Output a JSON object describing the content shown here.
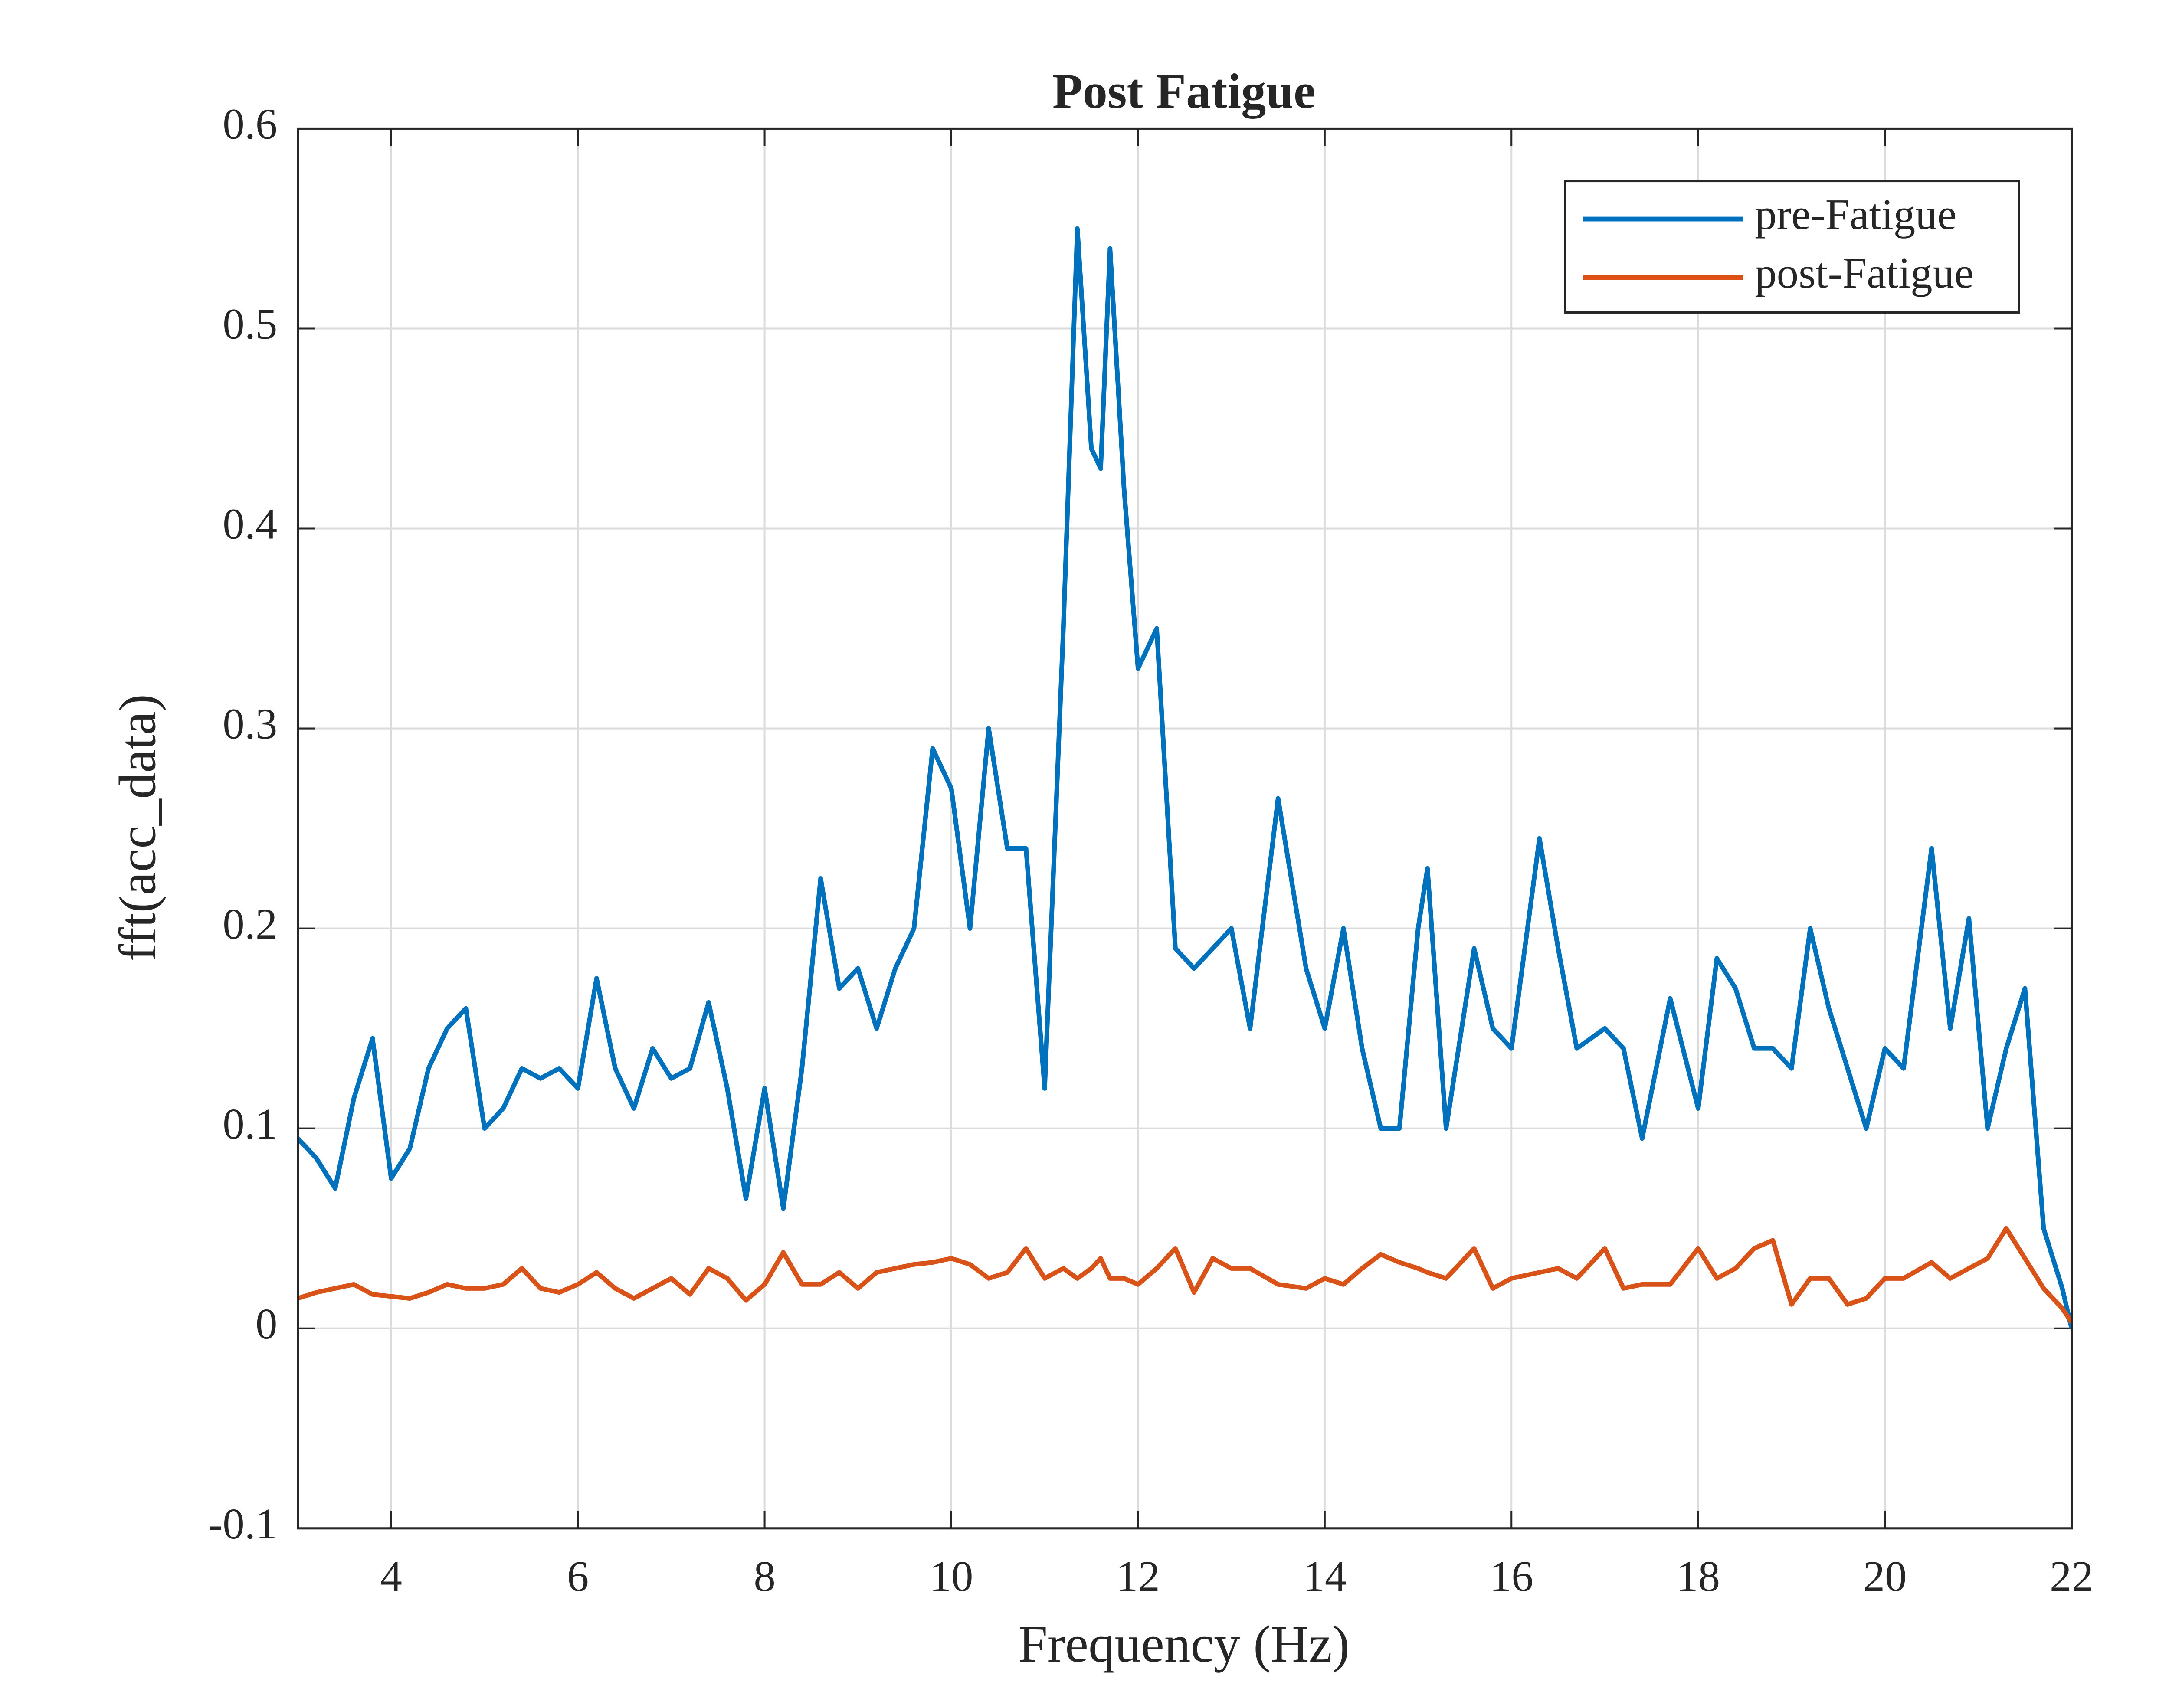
{
  "chart_data": {
    "type": "line",
    "title": "Post Fatigue",
    "xlabel": "Frequency (Hz)",
    "ylabel": "fft(acc_data)",
    "x": [
      3,
      3.2,
      3.4,
      3.6,
      3.8,
      4,
      4.2,
      4.4,
      4.6,
      4.8,
      5,
      5.2,
      5.4,
      5.6,
      5.8,
      6,
      6.2,
      6.4,
      6.6,
      6.8,
      7,
      7.2,
      7.4,
      7.6,
      7.8,
      8,
      8.2,
      8.4,
      8.6,
      8.8,
      9,
      9.2,
      9.4,
      9.6,
      9.8,
      10,
      10.2,
      10.4,
      10.6,
      10.8,
      11,
      11.2,
      11.35,
      11.5,
      11.6,
      11.7,
      11.85,
      12,
      12.2,
      12.4,
      12.6,
      12.8,
      13,
      13.2,
      13.5,
      13.8,
      14,
      14.2,
      14.4,
      14.6,
      14.8,
      15,
      15.1,
      15.3,
      15.6,
      15.8,
      16,
      16.3,
      16.5,
      16.7,
      17,
      17.2,
      17.4,
      17.7,
      18,
      18.2,
      18.4,
      18.6,
      18.8,
      19,
      19.2,
      19.4,
      19.6,
      19.8,
      20,
      20.2,
      20.5,
      20.7,
      20.9,
      21.1,
      21.3,
      21.5,
      21.7,
      21.9,
      22
    ],
    "series": [
      {
        "name": "pre-Fatigue",
        "color": "#0072BD",
        "values": [
          0.095,
          0.085,
          0.07,
          0.115,
          0.145,
          0.075,
          0.09,
          0.13,
          0.15,
          0.16,
          0.1,
          0.11,
          0.13,
          0.125,
          0.13,
          0.12,
          0.175,
          0.13,
          0.11,
          0.14,
          0.125,
          0.13,
          0.163,
          0.12,
          0.065,
          0.12,
          0.06,
          0.13,
          0.225,
          0.17,
          0.18,
          0.15,
          0.18,
          0.2,
          0.29,
          0.27,
          0.2,
          0.3,
          0.24,
          0.24,
          0.12,
          0.35,
          0.55,
          0.44,
          0.43,
          0.54,
          0.42,
          0.33,
          0.35,
          0.19,
          0.18,
          0.19,
          0.2,
          0.15,
          0.265,
          0.18,
          0.15,
          0.2,
          0.14,
          0.1,
          0.1,
          0.2,
          0.23,
          0.1,
          0.19,
          0.15,
          0.14,
          0.245,
          0.19,
          0.14,
          0.15,
          0.14,
          0.095,
          0.165,
          0.11,
          0.185,
          0.17,
          0.14,
          0.14,
          0.13,
          0.2,
          0.16,
          0.13,
          0.1,
          0.14,
          0.13,
          0.24,
          0.15,
          0.205,
          0.1,
          0.14,
          0.17,
          0.05,
          0.02,
          0
        ]
      },
      {
        "name": "post-Fatigue",
        "color": "#D95319",
        "values": [
          0.015,
          0.018,
          0.02,
          0.022,
          0.017,
          0.016,
          0.015,
          0.018,
          0.022,
          0.02,
          0.02,
          0.022,
          0.03,
          0.02,
          0.018,
          0.022,
          0.028,
          0.02,
          0.015,
          0.02,
          0.025,
          0.017,
          0.03,
          0.025,
          0.014,
          0.022,
          0.038,
          0.022,
          0.022,
          0.028,
          0.02,
          0.028,
          0.03,
          0.032,
          0.033,
          0.035,
          0.032,
          0.025,
          0.028,
          0.04,
          0.025,
          0.03,
          0.025,
          0.03,
          0.035,
          0.025,
          0.025,
          0.022,
          0.03,
          0.04,
          0.018,
          0.035,
          0.03,
          0.03,
          0.022,
          0.02,
          0.025,
          0.022,
          0.03,
          0.037,
          0.033,
          0.03,
          0.028,
          0.025,
          0.04,
          0.02,
          0.025,
          0.028,
          0.03,
          0.025,
          0.04,
          0.02,
          0.022,
          0.022,
          0.04,
          0.025,
          0.03,
          0.04,
          0.044,
          0.012,
          0.025,
          0.025,
          0.012,
          0.015,
          0.025,
          0.025,
          0.033,
          0.025,
          0.03,
          0.035,
          0.05,
          0.035,
          0.02,
          0.01,
          0.003
        ]
      }
    ],
    "xlim": [
      3,
      22
    ],
    "xticks": [
      4,
      6,
      8,
      10,
      12,
      14,
      16,
      18,
      20,
      22
    ],
    "ylim": [
      -0.1,
      0.6
    ],
    "yticks": [
      -0.1,
      0,
      0.1,
      0.2,
      0.3,
      0.4,
      0.5,
      0.6
    ],
    "grid": true,
    "legend": "northeast"
  }
}
